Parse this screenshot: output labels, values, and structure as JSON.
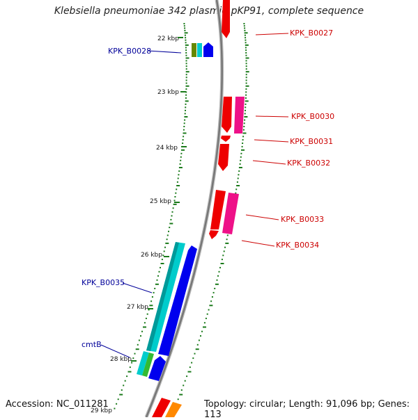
{
  "title": "Klebsiella pneumoniae 342 plasmid pKP91, complete sequence",
  "footer": {
    "accession": "Accession: NC_011281",
    "summary": "Topology: circular; Length: 91,096 bp; Genes: 113"
  },
  "scale_labels": [
    "22 kbp",
    "23 kbp",
    "24 kbp",
    "25 kbp",
    "26 kbp",
    "27 kbp",
    "28 kbp",
    "29 kbp"
  ],
  "genes": {
    "reverse": [
      {
        "label": "KPK_B0027",
        "color": "#cc0000"
      },
      {
        "label": "KPK_B0030",
        "color": "#cc0000"
      },
      {
        "label": "KPK_B0031",
        "color": "#cc0000"
      },
      {
        "label": "KPK_B0032",
        "color": "#cc0000"
      },
      {
        "label": "KPK_B0033",
        "color": "#cc0000"
      },
      {
        "label": "KPK_B0034",
        "color": "#cc0000"
      }
    ],
    "forward": [
      {
        "label": "KPK_B0028",
        "color": "#000099"
      },
      {
        "label": "KPK_B0035",
        "color": "#000099"
      },
      {
        "label": "cmtB",
        "color": "#000099"
      }
    ]
  },
  "colors": {
    "backbone": "#888888",
    "tick": "#1a7a1a",
    "blue": "#0000ee",
    "cyan": "#00cccc",
    "red": "#ee0000",
    "pink": "#ee1188",
    "olive": "#668800",
    "green": "#33bb33",
    "orange": "#ff8800"
  }
}
